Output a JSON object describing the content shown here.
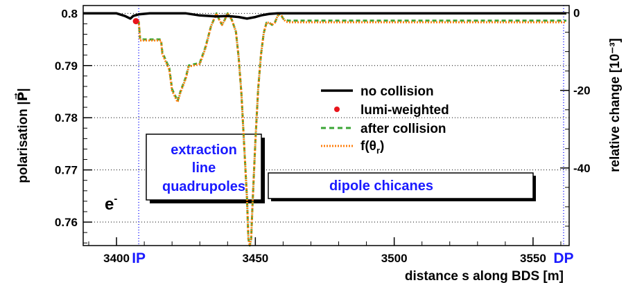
{
  "chart_data": {
    "type": "line",
    "xlabel": "distance s along BDS [m]",
    "ylabel_left": "polarisation |P⃗|",
    "ylabel_right": "relative change [10⁻³]",
    "xlim": [
      3388,
      3563
    ],
    "ylim": [
      0.7555,
      0.8015
    ],
    "y2lim": [
      -60.0,
      1.875
    ],
    "x_ticks": [
      3400,
      3450,
      3500,
      3550
    ],
    "x_tick_labels": [
      "3400",
      "3450",
      "3500",
      "3550"
    ],
    "y_ticks": [
      0.76,
      0.77,
      0.78,
      0.79,
      0.8
    ],
    "y_tick_labels": [
      "0.76",
      "0.77",
      "0.78",
      "0.79",
      "0.8"
    ],
    "y2_ticks": [
      0,
      -20,
      -40
    ],
    "y2_tick_labels": [
      "0",
      "-20",
      "-40"
    ],
    "grid": "horizontal dotted",
    "markers": [
      {
        "label": "IP",
        "x": 3408,
        "color": "#1a1aff"
      },
      {
        "label": "DP",
        "x": 3561,
        "color": "#1a1aff"
      }
    ],
    "particle_label": "e",
    "particle_sup": "-",
    "boxes": [
      {
        "lines": [
          "extraction",
          "line",
          "quadrupoles"
        ]
      },
      {
        "lines": [
          "dipole chicanes"
        ]
      }
    ],
    "legend": {
      "position": "right",
      "entries": [
        {
          "label": "no collision",
          "color": "#000000",
          "style": "solid"
        },
        {
          "label": "lumi-weighted",
          "color": "#e8141b",
          "style": "marker"
        },
        {
          "label": "after collision",
          "color": "#3aa534",
          "style": "dashed"
        },
        {
          "label_main": "f(θ",
          "label_sub": "r",
          "label_end": ")",
          "color": "#ff7f0e",
          "style": "dotted"
        }
      ]
    },
    "series": [
      {
        "name": "no collision",
        "color": "#000000",
        "x": [
          3388,
          3400,
          3403,
          3405,
          3406,
          3408,
          3412,
          3425,
          3430,
          3436,
          3440,
          3444,
          3447,
          3450,
          3452,
          3455,
          3458,
          3460,
          3480,
          3520,
          3562
        ],
        "y": [
          0.8,
          0.8,
          0.7995,
          0.799,
          0.7995,
          0.7998,
          0.8,
          0.8,
          0.7996,
          0.7994,
          0.7995,
          0.7993,
          0.799,
          0.7993,
          0.7996,
          0.7999,
          0.8,
          0.8,
          0.8,
          0.8,
          0.8
        ]
      },
      {
        "name": "lumi-weighted",
        "color": "#e8141b",
        "x": [
          3407
        ],
        "y": [
          0.7985
        ]
      },
      {
        "name": "after collision",
        "color": "#3aa534",
        "x": [
          3408,
          3408.5,
          3416,
          3416.5,
          3419,
          3420,
          3422,
          3423,
          3425,
          3426,
          3430,
          3432,
          3434,
          3436,
          3437,
          3438,
          3439,
          3440,
          3441.5,
          3443,
          3444,
          3445,
          3446,
          3447,
          3447.5,
          3448,
          3448.5,
          3449,
          3450,
          3451,
          3452,
          3453,
          3454,
          3455,
          3456,
          3457,
          3458,
          3459,
          3460,
          3461,
          3462,
          3480,
          3520,
          3562
        ],
        "y": [
          0.7985,
          0.795,
          0.795,
          0.7925,
          0.7895,
          0.7855,
          0.7832,
          0.785,
          0.7878,
          0.79,
          0.7905,
          0.7935,
          0.7975,
          0.8,
          0.7988,
          0.7978,
          0.7988,
          0.8,
          0.7988,
          0.7965,
          0.7915,
          0.7845,
          0.7745,
          0.7645,
          0.7568,
          0.7555,
          0.7568,
          0.7635,
          0.7755,
          0.7855,
          0.792,
          0.7962,
          0.7982,
          0.7982,
          0.7978,
          0.7982,
          0.7995,
          0.8,
          0.799,
          0.7987,
          0.7986,
          0.7986,
          0.7986,
          0.7986
        ]
      },
      {
        "name": "f(θr)",
        "color": "#ff7f0e",
        "x": [
          3408,
          3408.5,
          3416,
          3416.5,
          3419,
          3420,
          3422,
          3423,
          3425,
          3426,
          3430,
          3432,
          3434,
          3436,
          3437,
          3438,
          3439,
          3440,
          3441.5,
          3443,
          3444,
          3445,
          3446,
          3447,
          3447.5,
          3448,
          3448.5,
          3449,
          3450,
          3451,
          3452,
          3453,
          3454,
          3455,
          3456,
          3457,
          3458,
          3459,
          3460,
          3461,
          3462,
          3480,
          3520,
          3562
        ],
        "y": [
          0.7985,
          0.7948,
          0.7948,
          0.7922,
          0.7892,
          0.7852,
          0.783,
          0.7848,
          0.7876,
          0.7898,
          0.7903,
          0.7933,
          0.7975,
          0.8,
          0.7988,
          0.7978,
          0.7988,
          0.8,
          0.7988,
          0.7965,
          0.7915,
          0.7845,
          0.7745,
          0.7645,
          0.7568,
          0.7555,
          0.7568,
          0.7635,
          0.7755,
          0.7855,
          0.792,
          0.7962,
          0.7982,
          0.7982,
          0.7978,
          0.7982,
          0.7995,
          0.8,
          0.799,
          0.7984,
          0.7983,
          0.7983,
          0.7983,
          0.7983
        ]
      }
    ]
  }
}
